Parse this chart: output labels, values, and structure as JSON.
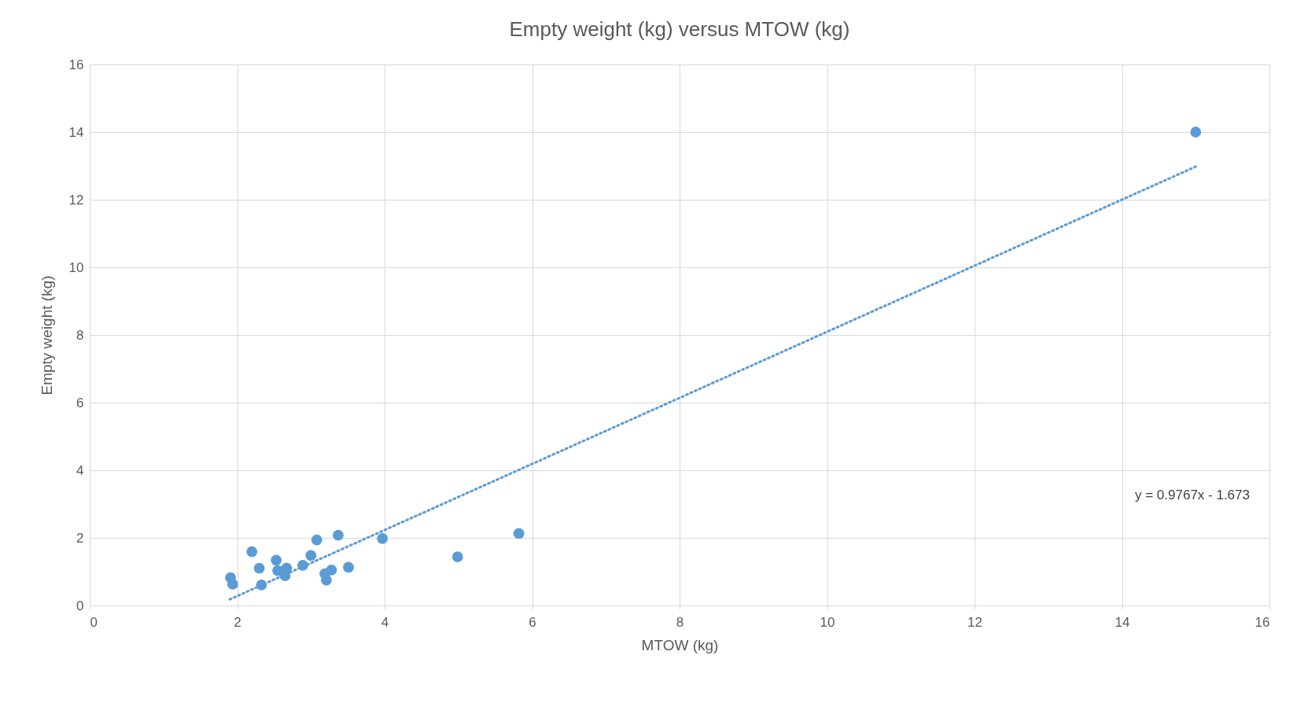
{
  "chart_data": {
    "type": "scatter",
    "title": "Empty weight (kg) versus MTOW (kg)",
    "xlabel": "MTOW (kg)",
    "ylabel": "Empty weight (kg)",
    "xlim": [
      0,
      16
    ],
    "ylim": [
      0,
      16
    ],
    "xticks": [
      0,
      2,
      4,
      6,
      8,
      10,
      12,
      14,
      16
    ],
    "yticks": [
      0,
      2,
      4,
      6,
      8,
      10,
      12,
      14,
      16
    ],
    "grid": true,
    "marker": "circle",
    "series": [
      {
        "color": "#5b9bd5",
        "x": [
          1.91,
          1.94,
          2.2,
          2.3,
          2.33,
          2.53,
          2.55,
          2.65,
          2.67,
          2.89,
          3.0,
          3.08,
          3.37,
          3.19,
          3.28,
          3.21,
          3.51,
          3.97,
          4.99,
          5.82,
          15
        ],
        "values": [
          0.82,
          0.63,
          1.59,
          1.1,
          0.61,
          1.34,
          1.03,
          0.88,
          1.11,
          1.19,
          1.48,
          1.94,
          2.08,
          0.94,
          1.05,
          0.75,
          1.13,
          1.98,
          1.44,
          2.13,
          14
        ]
      },
      {
        "type": "line",
        "color": "#5b9bd5",
        "line_style": "dotted",
        "marker": "none",
        "x": [
          1.9,
          15
        ],
        "values": [
          0.18,
          12.98
        ]
      }
    ],
    "annotations": [
      "y = 0.9767x - 1.673"
    ]
  }
}
